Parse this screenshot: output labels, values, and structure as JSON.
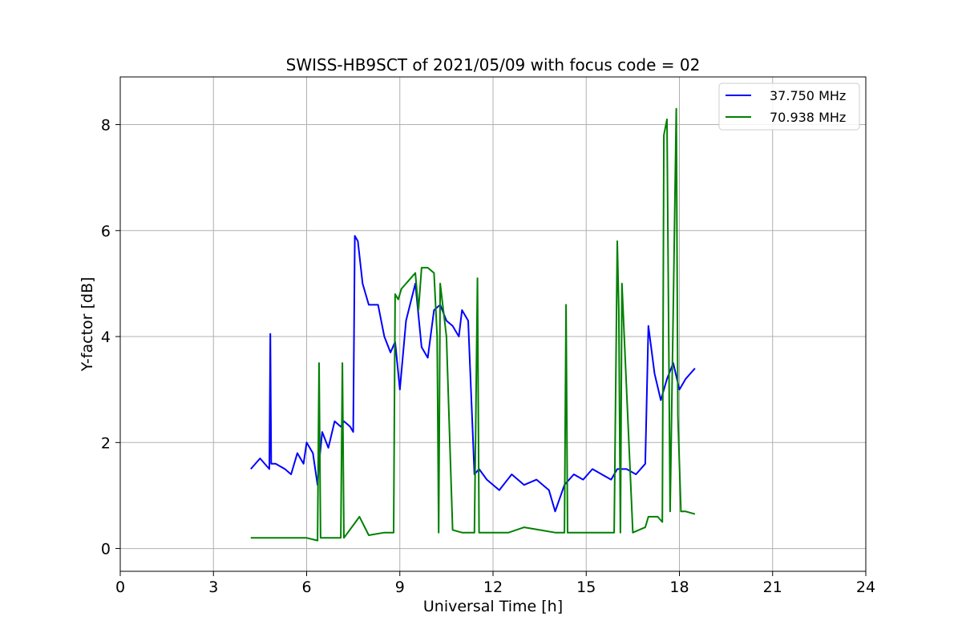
{
  "chart_data": {
    "type": "line",
    "title": "SWISS-HB9SCT of 2021/05/09 with focus code = 02",
    "xlabel": "Universal Time [h]",
    "ylabel": "Y-factor [dB]",
    "xlim": [
      0,
      24
    ],
    "ylim": [
      -0.43,
      8.9
    ],
    "xticks": [
      0,
      3,
      6,
      9,
      12,
      15,
      18,
      21,
      24
    ],
    "yticks": [
      0,
      2,
      4,
      6,
      8
    ],
    "xtick_labels": [
      "0",
      "3",
      "6",
      "9",
      "12",
      "15",
      "18",
      "21",
      "24"
    ],
    "ytick_labels": [
      "0",
      "2",
      "4",
      "6",
      "8"
    ],
    "grid": true,
    "legend_position": "top-right",
    "series": [
      {
        "name": "37.750 MHz",
        "color": "#0000ff",
        "x": [
          4.2,
          4.5,
          4.8,
          4.83,
          4.86,
          5.0,
          5.3,
          5.5,
          5.7,
          5.9,
          6.0,
          6.2,
          6.35,
          6.4,
          6.5,
          6.7,
          6.9,
          7.1,
          7.2,
          7.4,
          7.5,
          7.55,
          7.65,
          7.8,
          8.0,
          8.3,
          8.5,
          8.7,
          8.85,
          9.0,
          9.2,
          9.5,
          9.7,
          9.9,
          10.1,
          10.3,
          10.5,
          10.7,
          10.9,
          11.0,
          11.2,
          11.4,
          11.55,
          11.8,
          12.2,
          12.6,
          13.0,
          13.4,
          13.8,
          14.0,
          14.3,
          14.6,
          14.9,
          15.2,
          15.5,
          15.8,
          16.0,
          16.3,
          16.6,
          16.9,
          17.0,
          17.2,
          17.4,
          17.6,
          17.8,
          18.0,
          18.2,
          18.5
        ],
        "y": [
          1.5,
          1.7,
          1.5,
          4.05,
          1.6,
          1.6,
          1.5,
          1.4,
          1.8,
          1.6,
          2.0,
          1.8,
          1.2,
          1.6,
          2.2,
          1.9,
          2.4,
          2.3,
          2.4,
          2.3,
          2.2,
          5.9,
          5.8,
          5.0,
          4.6,
          4.6,
          4.0,
          3.7,
          3.9,
          3.0,
          4.3,
          5.0,
          3.8,
          3.6,
          4.5,
          4.6,
          4.3,
          4.2,
          4.0,
          4.5,
          4.3,
          1.4,
          1.5,
          1.3,
          1.1,
          1.4,
          1.2,
          1.3,
          1.1,
          0.7,
          1.2,
          1.4,
          1.3,
          1.5,
          1.4,
          1.3,
          1.5,
          1.5,
          1.4,
          1.6,
          4.2,
          3.3,
          2.8,
          3.2,
          3.5,
          3.0,
          3.2,
          3.4
        ]
      },
      {
        "name": "70.938 MHz",
        "color": "#008000",
        "x": [
          4.2,
          4.8,
          5.5,
          6.0,
          6.35,
          6.4,
          6.45,
          6.8,
          7.1,
          7.15,
          7.2,
          7.7,
          8.0,
          8.5,
          8.8,
          8.85,
          8.95,
          9.05,
          9.2,
          9.5,
          9.6,
          9.7,
          9.9,
          10.1,
          10.2,
          10.25,
          10.3,
          10.5,
          10.7,
          11.0,
          11.2,
          11.4,
          11.5,
          11.55,
          12.0,
          12.5,
          13.0,
          13.5,
          14.0,
          14.3,
          14.35,
          14.4,
          14.8,
          15.2,
          15.6,
          15.9,
          16.0,
          16.05,
          16.1,
          16.15,
          16.5,
          16.9,
          17.0,
          17.3,
          17.45,
          17.5,
          17.6,
          17.7,
          17.8,
          17.9,
          17.95,
          18.05,
          18.2,
          18.5
        ],
        "y": [
          0.2,
          0.2,
          0.2,
          0.2,
          0.15,
          3.5,
          0.2,
          0.2,
          0.2,
          3.5,
          0.2,
          0.6,
          0.25,
          0.3,
          0.3,
          4.8,
          4.7,
          4.9,
          5.0,
          5.2,
          4.5,
          5.3,
          5.3,
          5.2,
          4.0,
          0.3,
          5.0,
          4.0,
          0.35,
          0.3,
          0.3,
          0.3,
          5.1,
          0.3,
          0.3,
          0.3,
          0.4,
          0.35,
          0.3,
          0.3,
          4.6,
          0.3,
          0.3,
          0.3,
          0.3,
          0.3,
          5.8,
          4.5,
          0.3,
          5.0,
          0.3,
          0.4,
          0.6,
          0.6,
          0.5,
          7.8,
          8.1,
          0.7,
          4.5,
          8.3,
          2.5,
          0.7,
          0.7,
          0.65
        ]
      }
    ]
  }
}
